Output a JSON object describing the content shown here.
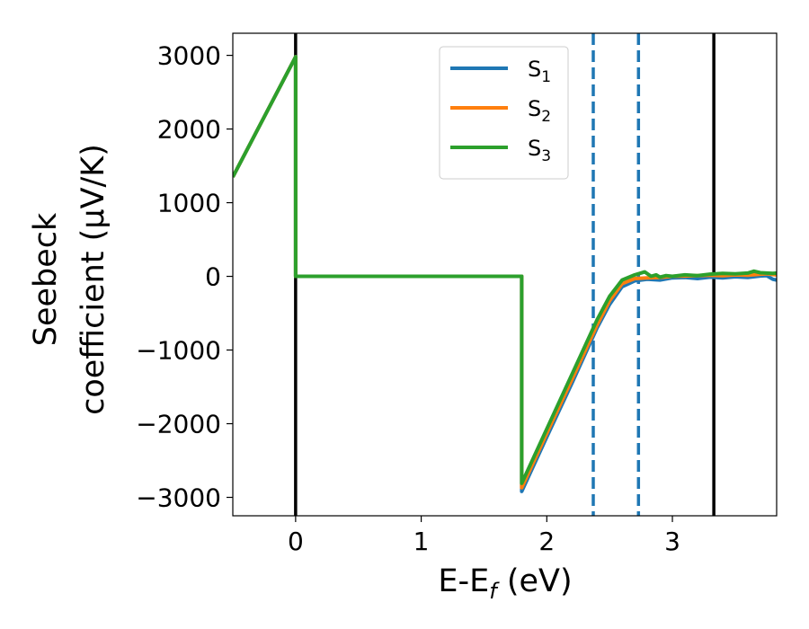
{
  "chart_data": {
    "type": "line",
    "xlabel": "E-E",
    "xlabel_sub": "f",
    "xlabel_unit": " (eV)",
    "ylabel_line1": "Seebeck",
    "ylabel_line2": "coefficient  (μV/K)",
    "xlim": [
      -0.5,
      3.83
    ],
    "ylim": [
      -3250,
      3300
    ],
    "xticks": [
      0,
      1,
      2,
      3
    ],
    "xtick_labels": [
      "0",
      "1",
      "2",
      "3"
    ],
    "yticks": [
      3000,
      2000,
      1000,
      0,
      -1000,
      -2000,
      -3000
    ],
    "ytick_labels": [
      "3000",
      "2000",
      "1000",
      "0",
      "−1000",
      "−2000",
      "−3000"
    ],
    "grid": false,
    "legend": {
      "position": "upper-center",
      "entries": [
        {
          "base": "S",
          "sub": "1"
        },
        {
          "base": "S",
          "sub": "2"
        },
        {
          "base": "S",
          "sub": "3"
        }
      ]
    },
    "vlines": [
      {
        "x": 0.0,
        "style": "solid",
        "color": "#000000"
      },
      {
        "x": 3.33,
        "style": "solid",
        "color": "#000000"
      },
      {
        "x": 2.37,
        "style": "dashed",
        "color": "#1f77b4"
      },
      {
        "x": 2.73,
        "style": "dashed",
        "color": "#1f77b4"
      }
    ],
    "series": [
      {
        "color": "#1f77b4",
        "x": [
          -0.5,
          0.0,
          0.0,
          1.8,
          1.8,
          2.0,
          2.2,
          2.4,
          2.5,
          2.6,
          2.7,
          2.8,
          2.9,
          3.0,
          3.1,
          3.2,
          3.3,
          3.4,
          3.5,
          3.6,
          3.7,
          3.75,
          3.8,
          3.83
        ],
        "y": [
          1350,
          2980,
          0,
          0,
          -2920,
          -2180,
          -1450,
          -700,
          -380,
          -140,
          -60,
          -40,
          -50,
          -20,
          -15,
          -30,
          -10,
          -20,
          -5,
          -15,
          5,
          10,
          -40,
          -50
        ]
      },
      {
        "color": "#ff7f0e",
        "x": [
          -0.5,
          0.0,
          0.0,
          1.8,
          1.8,
          2.0,
          2.2,
          2.4,
          2.5,
          2.6,
          2.7,
          2.8,
          2.9,
          3.0,
          3.1,
          3.2,
          3.3,
          3.4,
          3.5,
          3.6,
          3.7,
          3.75,
          3.8,
          3.83
        ],
        "y": [
          1350,
          2980,
          0,
          0,
          -2870,
          -2130,
          -1400,
          -660,
          -330,
          -100,
          -30,
          -20,
          -15,
          0,
          5,
          10,
          15,
          10,
          20,
          15,
          30,
          35,
          25,
          20
        ]
      },
      {
        "color": "#2ca02c",
        "x": [
          -0.5,
          0.0,
          0.0,
          1.8,
          1.8,
          2.0,
          2.2,
          2.4,
          2.5,
          2.6,
          2.7,
          2.78,
          2.83,
          2.87,
          2.9,
          2.95,
          3.0,
          3.1,
          3.2,
          3.3,
          3.4,
          3.5,
          3.6,
          3.65,
          3.7,
          3.8,
          3.83
        ],
        "y": [
          1350,
          2980,
          0,
          0,
          -2810,
          -2070,
          -1330,
          -590,
          -270,
          -50,
          20,
          60,
          0,
          20,
          -10,
          10,
          0,
          20,
          10,
          30,
          40,
          35,
          45,
          70,
          50,
          40,
          45
        ]
      }
    ]
  }
}
